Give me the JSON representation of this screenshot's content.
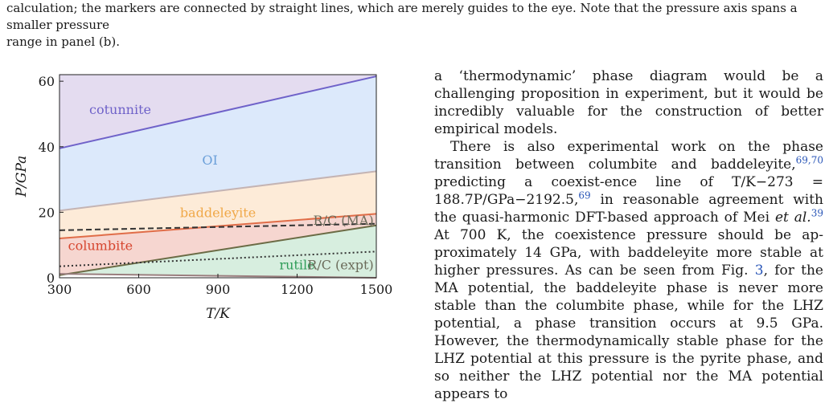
{
  "caption": {
    "line1": "calculation; the markers are connected by straight lines, which are merely guides to the eye. Note that the pressure axis spans a smaller pressure",
    "line2": "range in panel (b)."
  },
  "chart_data": {
    "type": "area",
    "xlabel": "T/K",
    "ylabel": "P/GPa",
    "xlim": [
      300,
      1500
    ],
    "ylim": [
      0,
      62
    ],
    "xticks": [
      "300",
      "600",
      "900",
      "1200",
      "1500"
    ],
    "yticks": [
      "0",
      "20",
      "40",
      "60"
    ],
    "regions": [
      {
        "name": "cotunnite",
        "color": "#e4dcf0",
        "line_color": "#6f62c9"
      },
      {
        "name": "OI",
        "color": "#dce9fb",
        "line_color": "#c4b4b4"
      },
      {
        "name": "baddeleyite",
        "color": "#fdebd8",
        "line_color": "#e06d48"
      },
      {
        "name": "columbite",
        "color": "#f6d6d0",
        "line_color": "#6b6b45"
      },
      {
        "name": "rutile",
        "color": "#d7eedf",
        "line_color": "#9a7e7e"
      }
    ],
    "boundaries": [
      {
        "name": "cotunnite/OI",
        "x": [
          300,
          1500
        ],
        "y": [
          39.5,
          61.5
        ]
      },
      {
        "name": "OI/baddeleyite",
        "x": [
          300,
          1500
        ],
        "y": [
          20.5,
          32.5
        ]
      },
      {
        "name": "baddeleyite/columbite",
        "x": [
          300,
          1500
        ],
        "y": [
          12.0,
          19.5
        ]
      },
      {
        "name": "columbite/rutile",
        "x": [
          300,
          1500
        ],
        "y": [
          0.8,
          16.0
        ]
      },
      {
        "name": "rutile/bottom",
        "x": [
          300,
          1500
        ],
        "y": [
          1.2,
          0.0
        ]
      }
    ],
    "dashed_lines": [
      {
        "name": "R/C (MA)",
        "x": [
          300,
          1500
        ],
        "y": [
          14.5,
          16.5
        ],
        "style": "dashed"
      },
      {
        "name": "R/C (expt)",
        "x": [
          300,
          1500
        ],
        "y": [
          3.5,
          8.0
        ],
        "style": "dotted"
      }
    ],
    "labels": {
      "cotunnite": "cotunnite",
      "oi": "OI",
      "baddeleyite": "baddeleyite",
      "columbite": "columbite",
      "rutile": "rutile",
      "rc_ma": "R/C (MA)",
      "rc_expt": "R/C (expt)"
    }
  },
  "text": {
    "p1": "a ‘thermodynamic’ phase diagram would be a challenging proposition in experiment, but it would be incredibly valuable for the construction of better empirical models.",
    "p2_a": "There is also experimental work on the phase transition between columbite and baddeleyite,",
    "p2_ref1": "69,70",
    "p2_b": " predicting a coexist-ence line of T/K−273 = 188.7P/GPa−2192.5,",
    "p2_ref2": "69",
    "p2_c": " in reasonable agreement with the quasi-harmonic DFT-based approach of Mei ",
    "p2_etal": "et al.",
    "p2_ref3": "39",
    "p2_d": " At 700 K, the coexistence pressure should be ap-proximately 14 GPa, with baddeleyite more stable at higher pressures. As can be seen from Fig. ",
    "p2_figref": "3",
    "p2_e": ", for the MA potential, the baddeleyite phase is never more stable than the columbite phase, while for the LHZ potential, a phase transition occurs at 9.5 GPa. However, the thermodynamically stable phase for the LHZ potential at this pressure is the pyrite phase, and so neither the LHZ potential nor the MA potential appears to"
  }
}
